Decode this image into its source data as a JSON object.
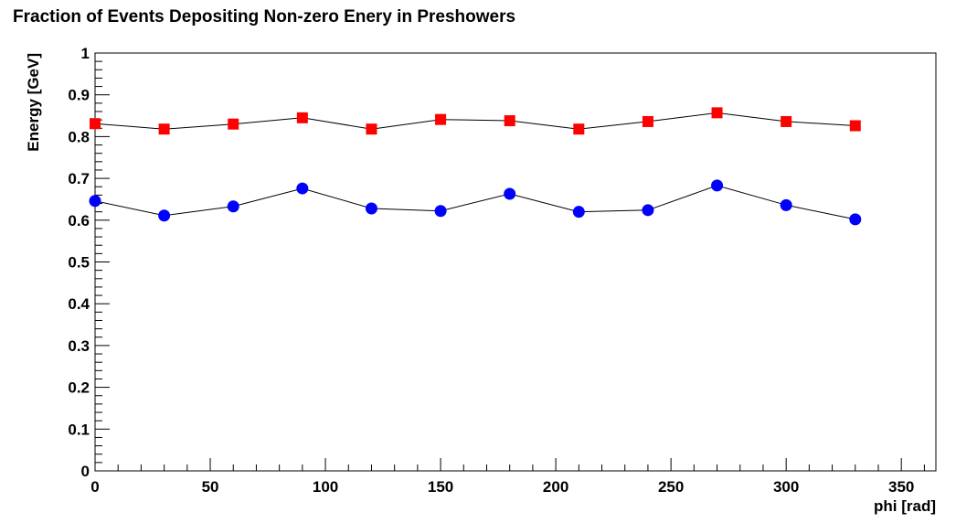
{
  "chart_data": {
    "type": "scatter",
    "title": "Fraction of Events Depositing Non-zero Enery in Preshowers",
    "xlabel": "phi [rad]",
    "ylabel": "Energy [GeV]",
    "xlim": [
      0,
      365
    ],
    "ylim": [
      0,
      1
    ],
    "x_ticks": [
      "0",
      "50",
      "100",
      "150",
      "200",
      "250",
      "300",
      "350"
    ],
    "y_ticks": [
      "0",
      "0.1",
      "0.2",
      "0.3",
      "0.4",
      "0.5",
      "0.6",
      "0.7",
      "0.8",
      "0.9",
      "1"
    ],
    "grid": false,
    "legend": "none",
    "x": [
      0,
      30,
      60,
      90,
      120,
      150,
      180,
      210,
      240,
      270,
      300,
      330
    ],
    "series": [
      {
        "marker": "square",
        "color": "#ff0000",
        "values": [
          0.831,
          0.818,
          0.83,
          0.845,
          0.818,
          0.841,
          0.838,
          0.818,
          0.836,
          0.857,
          0.836,
          0.826
        ]
      },
      {
        "marker": "circle",
        "color": "#0000ff",
        "values": [
          0.646,
          0.611,
          0.633,
          0.676,
          0.628,
          0.622,
          0.663,
          0.62,
          0.624,
          0.683,
          0.636,
          0.602
        ]
      }
    ]
  }
}
